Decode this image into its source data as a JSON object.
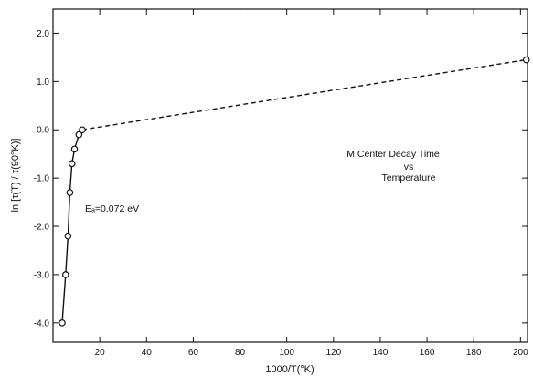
{
  "chart_data": {
    "type": "line",
    "xlabel": "1000/T(°K)",
    "ylabel": "ln [τ(T) / τ(90°K)]",
    "xlim": [
      0,
      203
    ],
    "ylim": [
      -4.4,
      2.5
    ],
    "xticks": [
      20,
      40,
      60,
      80,
      100,
      120,
      140,
      160,
      180,
      200
    ],
    "yticks": [
      2.0,
      1.0,
      0.0,
      -1.0,
      -2.0,
      -3.0,
      -4.0
    ],
    "xtick_labels": [
      "20",
      "40",
      "60",
      "80",
      "100",
      "120",
      "140",
      "160",
      "180",
      "200"
    ],
    "ytick_labels": [
      "2.0",
      "1.0",
      "0.0",
      "-1.0",
      "-2.0",
      "-3.0",
      "-4.0"
    ],
    "series": [
      {
        "style": "solid",
        "markers": true,
        "x": [
          3.9,
          5.4,
          6.4,
          7.2,
          8.1,
          9.2,
          11.1,
          12.5
        ],
        "y": [
          -4.0,
          -3.0,
          -2.2,
          -1.3,
          -0.7,
          -0.4,
          -0.1,
          0.0
        ]
      },
      {
        "style": "dashed",
        "x": [
          12.5,
          202.5
        ],
        "y": [
          0.0,
          1.45
        ]
      },
      {
        "style": "marker",
        "x": [
          202.5
        ],
        "y": [
          1.45
        ]
      }
    ],
    "annotations": {
      "activation_energy": "Eₐ=0.072 eV",
      "title_line1": "M Center Decay Time",
      "title_line2": "vs",
      "title_line3": "Temperature"
    },
    "grid": false,
    "legend": "none"
  }
}
